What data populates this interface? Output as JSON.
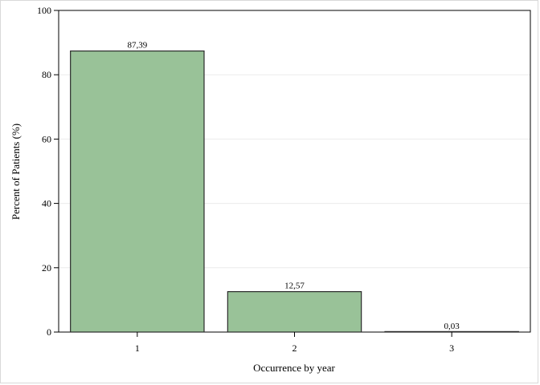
{
  "chart_data": {
    "type": "bar",
    "categories": [
      "1",
      "2",
      "3"
    ],
    "values": [
      87.39,
      12.57,
      0.03
    ],
    "data_labels": [
      "87,39",
      "12,57",
      "0,03"
    ],
    "xlabel": "Occurrence by year",
    "ylabel": "Percent of Patients (%)",
    "ylim": [
      0,
      100
    ],
    "yticks": [
      0,
      20,
      40,
      60,
      80,
      100
    ],
    "ytick_labels": [
      "0",
      "20",
      "40",
      "60",
      "80",
      "100"
    ],
    "grid": true,
    "bar_color": "#99c298",
    "bar_edge_color": "#2b2b2b",
    "grid_color": "#ececec"
  }
}
